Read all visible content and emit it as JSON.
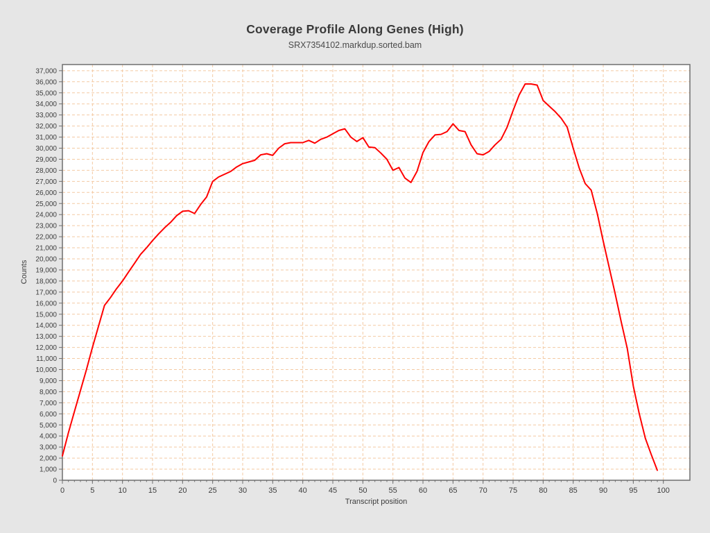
{
  "chart": {
    "title": "Coverage Profile Along Genes (High)",
    "subtitle": "SRX7354102.markdup.sorted.bam",
    "y_axis_title": "Counts",
    "x_axis_title": "Transcript position"
  },
  "chart_data": {
    "type": "line",
    "title": "Coverage Profile Along Genes (High)",
    "subtitle": "SRX7354102.markdup.sorted.bam",
    "xlabel": "Transcript position",
    "ylabel": "Counts",
    "xlim": [
      0,
      100
    ],
    "ylim": [
      0,
      37000
    ],
    "x_ticks": [
      0,
      5,
      10,
      15,
      20,
      25,
      30,
      35,
      40,
      45,
      50,
      55,
      60,
      65,
      70,
      75,
      80,
      85,
      90,
      95,
      100
    ],
    "y_ticks": [
      0,
      1000,
      2000,
      3000,
      4000,
      5000,
      6000,
      7000,
      8000,
      9000,
      10000,
      11000,
      12000,
      13000,
      14000,
      15000,
      16000,
      17000,
      18000,
      19000,
      20000,
      21000,
      22000,
      23000,
      24000,
      25000,
      26000,
      27000,
      28000,
      29000,
      30000,
      31000,
      32000,
      33000,
      34000,
      35000,
      36000,
      37000
    ],
    "grid": {
      "visible": true,
      "style": "dashed",
      "color": "#f3c9a2"
    },
    "legend_position": "none",
    "background_color": "#e6e6e6",
    "plot_background_color": "#ffffff",
    "axis_color": "#6e6e6e",
    "series": [
      {
        "name": "SRX7354102.markdup.sorted.bam",
        "color": "#ff0000",
        "x": [
          0,
          1,
          2,
          3,
          4,
          5,
          6,
          7,
          8,
          9,
          10,
          11,
          12,
          13,
          14,
          15,
          16,
          17,
          18,
          19,
          20,
          21,
          22,
          23,
          24,
          25,
          26,
          27,
          28,
          29,
          30,
          31,
          32,
          33,
          34,
          35,
          36,
          37,
          38,
          39,
          40,
          41,
          42,
          43,
          44,
          45,
          46,
          47,
          48,
          49,
          50,
          51,
          52,
          53,
          54,
          55,
          56,
          57,
          58,
          59,
          60,
          61,
          62,
          63,
          64,
          65,
          66,
          67,
          68,
          69,
          70,
          71,
          72,
          73,
          74,
          75,
          76,
          77,
          78,
          79,
          80,
          81,
          82,
          83,
          84,
          85,
          86,
          87,
          88,
          89,
          90,
          91,
          92,
          93,
          94,
          95,
          96,
          97,
          98,
          99
        ],
        "values": [
          2200,
          4300,
          6200,
          8100,
          10000,
          12000,
          13900,
          15800,
          16500,
          17300,
          18000,
          18800,
          19600,
          20400,
          21000,
          21650,
          22250,
          22800,
          23300,
          23900,
          24300,
          24350,
          24100,
          24900,
          25600,
          27000,
          27400,
          27650,
          27900,
          28300,
          28600,
          28750,
          28900,
          29400,
          29500,
          29350,
          30000,
          30400,
          30500,
          30500,
          30500,
          30700,
          30450,
          30800,
          31000,
          31300,
          31600,
          31750,
          31000,
          30600,
          30950,
          30100,
          30050,
          29550,
          29000,
          28000,
          28250,
          27300,
          26900,
          27900,
          29600,
          30600,
          31200,
          31250,
          31500,
          32200,
          31600,
          31500,
          30300,
          29500,
          29400,
          29700,
          30300,
          30800,
          31900,
          33400,
          34800,
          35800,
          35800,
          35700,
          34300,
          33800,
          33300,
          32700,
          31900,
          30000,
          28200,
          26800,
          26200,
          24100,
          21600,
          19200,
          16800,
          14300,
          11900,
          8500,
          6000,
          3800,
          2300,
          900
        ]
      }
    ]
  }
}
